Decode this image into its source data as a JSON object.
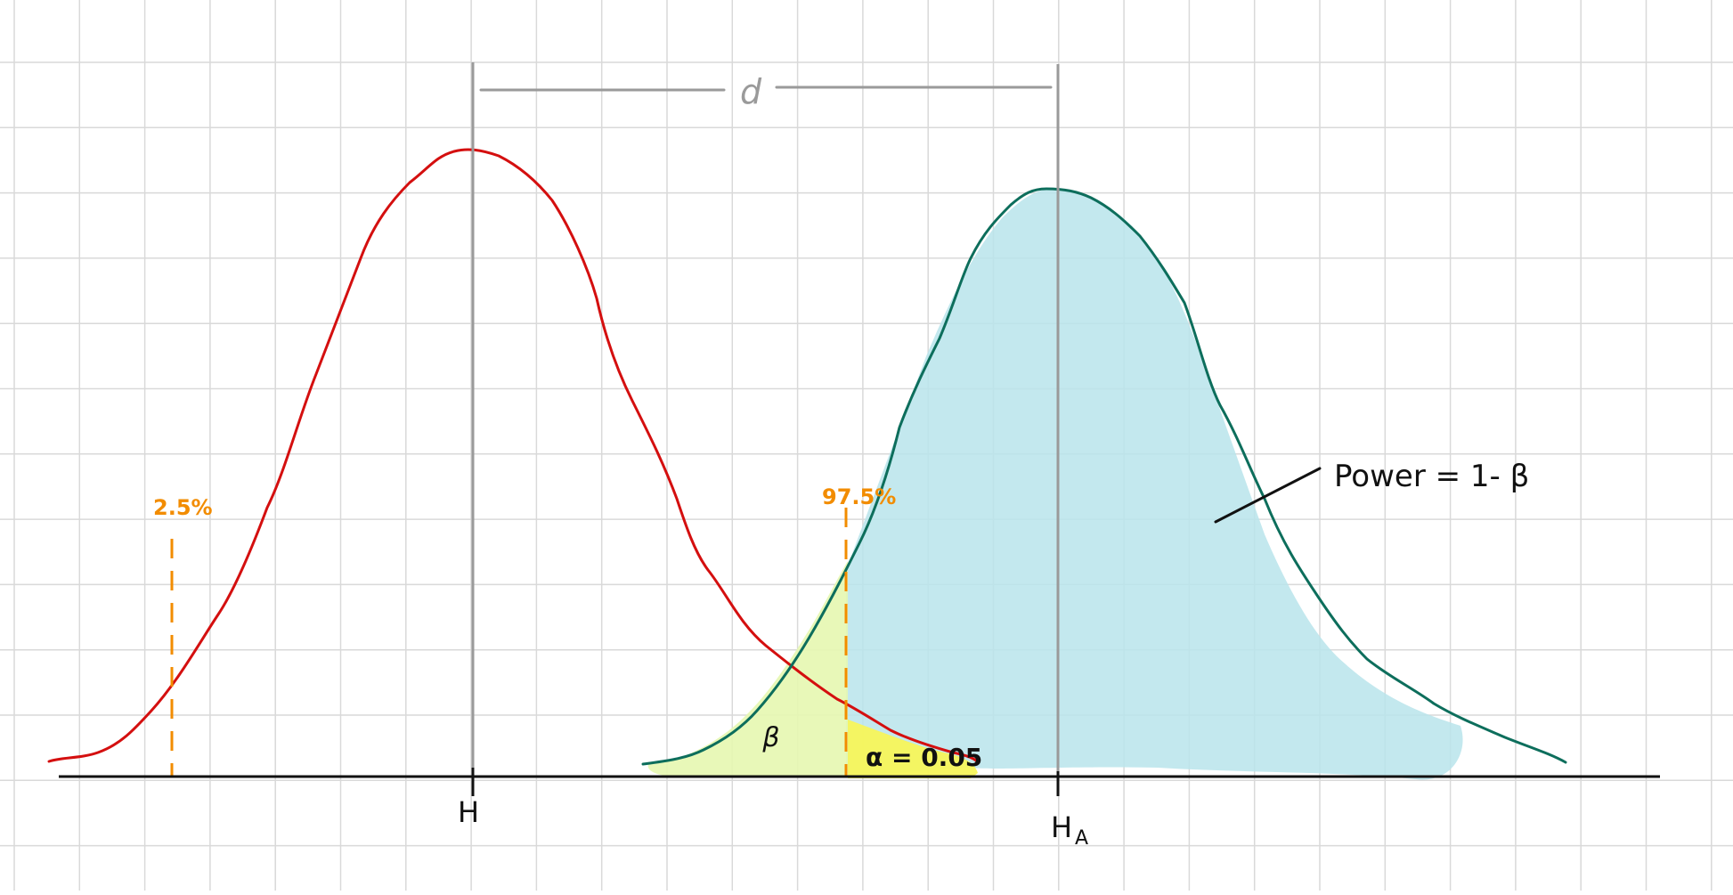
{
  "labels": {
    "d": "d",
    "h0": "H",
    "ha_main": "H",
    "ha_sub": "A",
    "pct_low": "2.5%",
    "pct_high": "97.5%",
    "beta": "β",
    "alpha": "α = 0.05",
    "power": "Power = 1- β"
  },
  "colors": {
    "grid": "#d9d9d9",
    "axis": "#111111",
    "null_curve": "#d40f0f",
    "alt_curve": "#0d6e5c",
    "power_fill": "#b8e4eb",
    "beta_fill": "#e6f7b0",
    "alpha_fill": "#f7f55a",
    "critical": "#f28c00",
    "guide": "#9a9a9a",
    "ink": "#111111"
  }
}
